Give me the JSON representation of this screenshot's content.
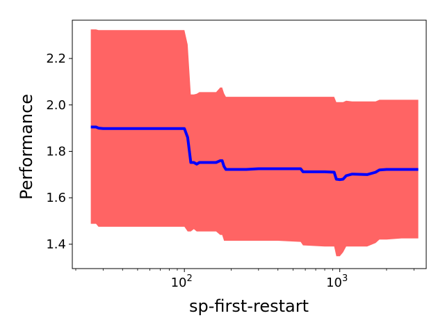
{
  "chart_data": {
    "type": "line",
    "title": "",
    "xlabel": "sp-first-restart",
    "ylabel": "Performance",
    "x_scale": "log",
    "xlim": [
      19,
      3600
    ],
    "ylim": [
      1.295,
      2.365
    ],
    "y_ticks": [
      1.4,
      1.6,
      1.8,
      2.0,
      2.2
    ],
    "y_tick_labels": [
      "1.4",
      "1.6",
      "1.8",
      "2.0",
      "2.2"
    ],
    "x_ticks": [
      100,
      1000
    ],
    "x_tick_labels": [
      {
        "base": "10",
        "exp": "2"
      },
      {
        "base": "10",
        "exp": "3"
      }
    ],
    "grid": false,
    "legend": "none",
    "colors": {
      "mean_line": "#0000ff",
      "band": "#ff6464"
    },
    "series": [
      {
        "x": [
          25,
          27,
          28,
          30,
          95,
          100,
          105,
          110,
          115,
          120,
          125,
          140,
          160,
          170,
          175,
          180,
          185,
          250,
          300,
          400,
          560,
          580,
          800,
          920,
          950,
          1000,
          1050,
          1100,
          1200,
          1500,
          1700,
          1800,
          2000,
          2500,
          3200
        ],
        "values": [
          1.905,
          1.905,
          1.9,
          1.898,
          1.898,
          1.898,
          1.86,
          1.752,
          1.752,
          1.745,
          1.752,
          1.752,
          1.752,
          1.76,
          1.76,
          1.735,
          1.722,
          1.722,
          1.725,
          1.725,
          1.725,
          1.712,
          1.712,
          1.71,
          1.68,
          1.678,
          1.68,
          1.695,
          1.702,
          1.7,
          1.71,
          1.72,
          1.722,
          1.722,
          1.722
        ],
        "upper": [
          2.325,
          2.325,
          2.322,
          2.322,
          2.322,
          2.322,
          2.26,
          2.045,
          2.045,
          2.048,
          2.055,
          2.055,
          2.055,
          2.075,
          2.075,
          2.05,
          2.035,
          2.035,
          2.035,
          2.035,
          2.035,
          2.035,
          2.035,
          2.035,
          2.012,
          2.012,
          2.012,
          2.018,
          2.015,
          2.015,
          2.015,
          2.022,
          2.022,
          2.022,
          2.022
        ],
        "lower": [
          1.488,
          1.488,
          1.475,
          1.475,
          1.475,
          1.475,
          1.455,
          1.455,
          1.465,
          1.455,
          1.455,
          1.455,
          1.455,
          1.44,
          1.44,
          1.415,
          1.415,
          1.415,
          1.415,
          1.415,
          1.41,
          1.395,
          1.39,
          1.39,
          1.348,
          1.348,
          1.365,
          1.39,
          1.39,
          1.39,
          1.405,
          1.42,
          1.42,
          1.425,
          1.425
        ]
      }
    ]
  }
}
